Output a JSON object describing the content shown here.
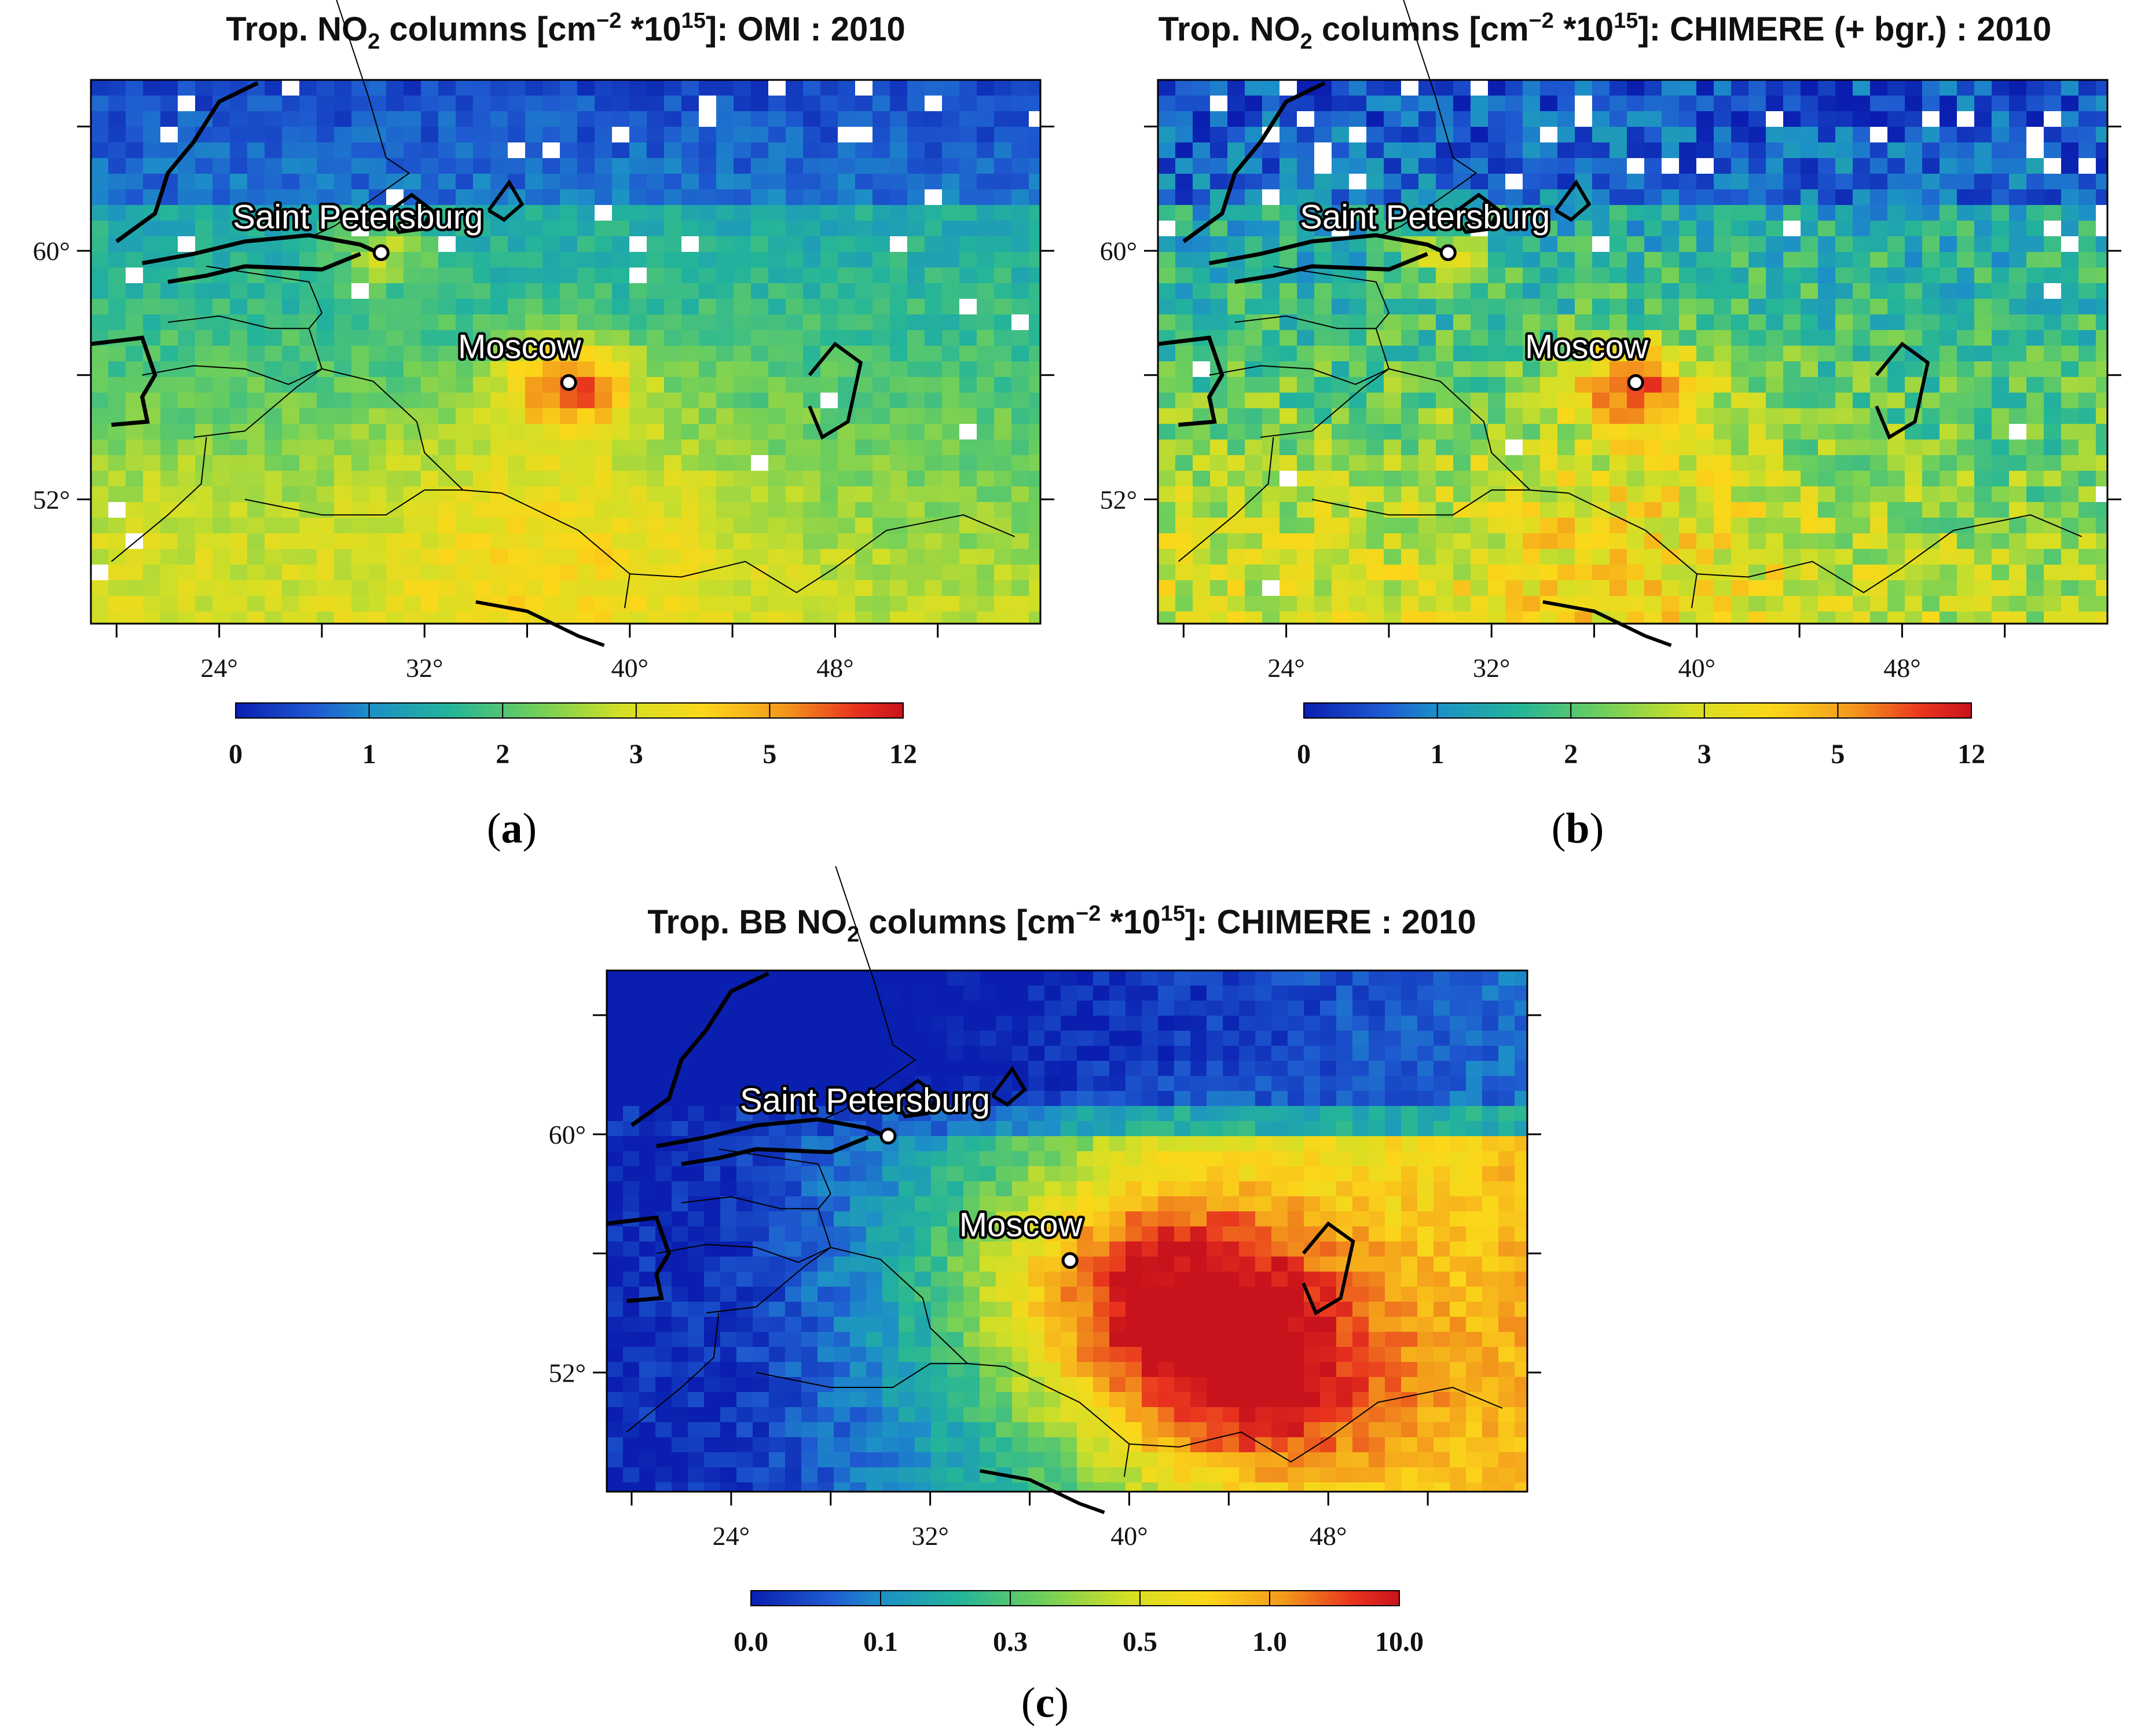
{
  "colorbar_colors": [
    "#0a1fb0",
    "#1e5ad0",
    "#1d8fc8",
    "#23b49a",
    "#6fcf5a",
    "#d4df25",
    "#fbd71a",
    "#f39a1c",
    "#e8321e",
    "#c8121c"
  ],
  "city_labels": [
    "Saint Petersburg",
    "Moscow"
  ],
  "cities": [
    {
      "name": "Saint Petersburg",
      "lat": 59.94,
      "lon": 30.31
    },
    {
      "name": "Moscow",
      "lat": 55.76,
      "lon": 37.62
    }
  ],
  "panels": [
    {
      "id": "a",
      "title_pre": "Trop. NO",
      "title_sub": "2",
      "title_mid": " columns [cm",
      "title_sup1": "−2",
      "title_mid2": " *10",
      "title_sup2": "15",
      "title_post": "]: OMI : 2010",
      "caption": "a",
      "colorbar_ticks": [
        "0",
        "1",
        "2",
        "3",
        "5",
        "12"
      ],
      "has_missing": true
    },
    {
      "id": "b",
      "title_pre": "Trop. NO",
      "title_sub": "2",
      "title_mid": " columns [cm",
      "title_sup1": "−2",
      "title_mid2": " *10",
      "title_sup2": "15",
      "title_post": "]: CHIMERE (+ bgr.) : 2010",
      "caption": "b",
      "colorbar_ticks": [
        "0",
        "1",
        "2",
        "3",
        "5",
        "12"
      ],
      "has_missing": true
    },
    {
      "id": "c",
      "title_pre": "Trop. BB NO",
      "title_sub": "2",
      "title_mid": " columns [cm",
      "title_sup1": "−2",
      "title_mid2": " *10",
      "title_sup2": "15",
      "title_post": "]: CHIMERE : 2010",
      "caption": "c",
      "colorbar_ticks": [
        "0.0",
        "0.1",
        "0.3",
        "0.5",
        "1.0",
        "10.0"
      ],
      "has_missing": false
    }
  ],
  "lon_ticks": [
    "24°",
    "32°",
    "40°",
    "48°"
  ],
  "lat_ticks": [
    "60°",
    "52°"
  ],
  "map_extent": {
    "lon": [
      19,
      56
    ],
    "lat": [
      48,
      65.5
    ]
  }
}
